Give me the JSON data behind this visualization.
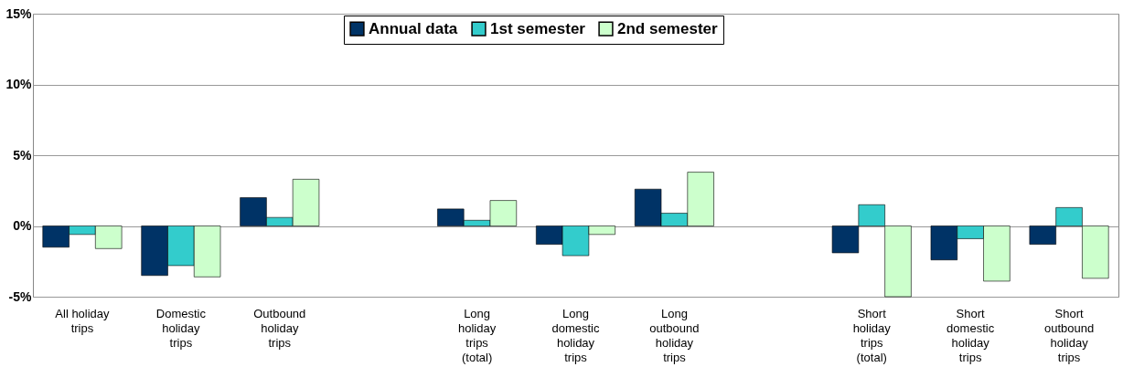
{
  "chart_data": {
    "type": "bar",
    "categories": [
      "All holiday trips",
      "Domestic holiday trips",
      "Outbound holiday trips",
      null,
      "Long holiday trips (total)",
      "Long domestic holiday trips",
      "Long outbound holiday trips",
      null,
      "Short holiday trips (total)",
      "Short domestic holiday trips",
      "Short outbound holiday trips"
    ],
    "series": [
      {
        "name": "Annual data",
        "color": "#003366",
        "values": [
          -1.5,
          -3.5,
          2.0,
          null,
          1.2,
          -1.3,
          2.6,
          null,
          -1.9,
          -2.4,
          -1.3
        ]
      },
      {
        "name": "1st semester",
        "color": "#33cccc",
        "values": [
          -0.6,
          -2.8,
          0.6,
          null,
          0.4,
          -2.1,
          0.9,
          null,
          1.5,
          -0.9,
          1.3
        ]
      },
      {
        "name": "2nd semester",
        "color": "#ccffcc",
        "values": [
          -1.6,
          -3.6,
          3.3,
          null,
          1.8,
          -0.6,
          3.8,
          null,
          -5.0,
          -3.9,
          -3.7
        ]
      }
    ],
    "ylim": [
      -5,
      15
    ],
    "yticks": [
      {
        "value": -5,
        "label": "-5%"
      },
      {
        "value": 0,
        "label": "0%"
      },
      {
        "value": 5,
        "label": "5%"
      },
      {
        "value": 10,
        "label": "10%"
      },
      {
        "value": 15,
        "label": "15%"
      }
    ],
    "grid": "y",
    "legend": "top"
  }
}
